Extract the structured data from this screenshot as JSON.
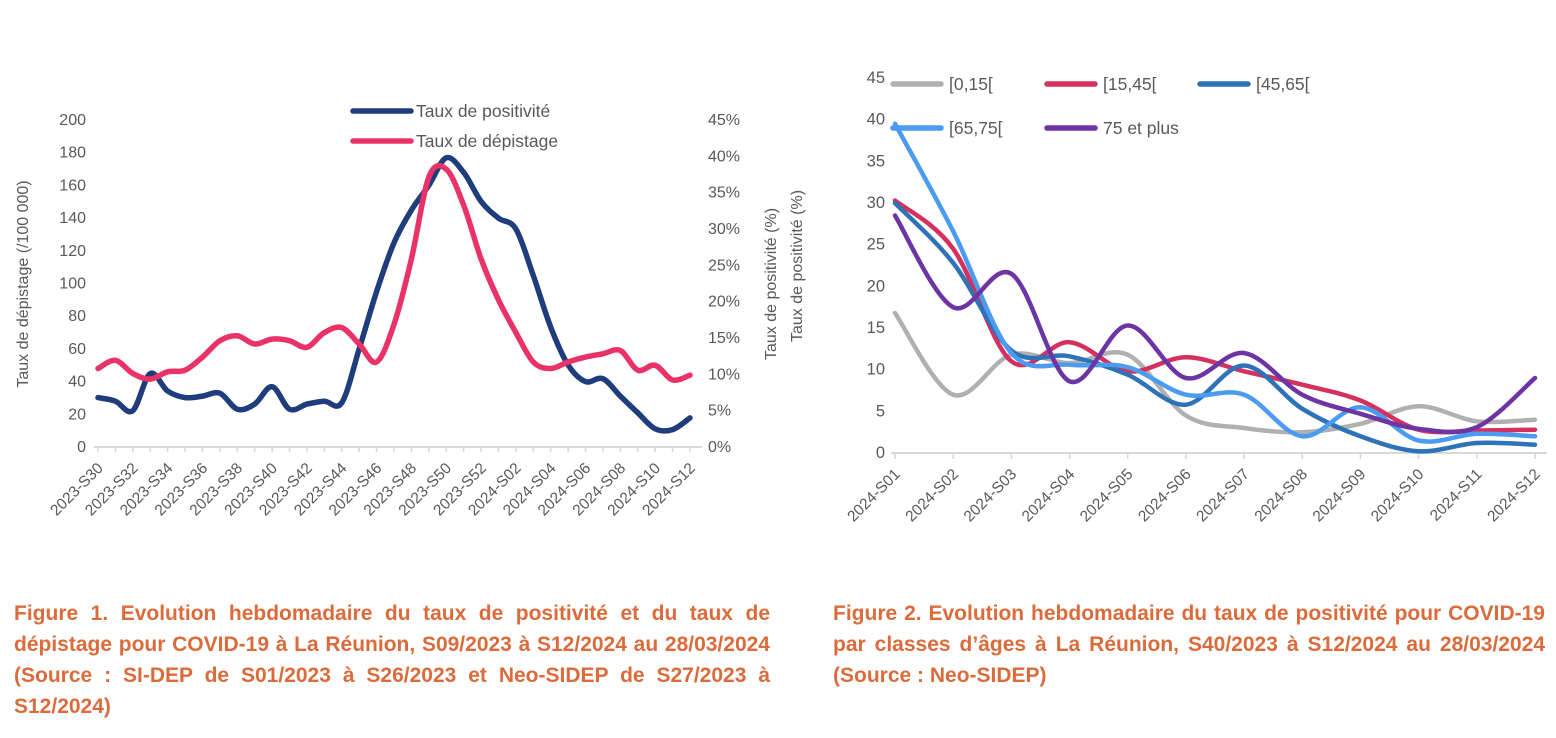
{
  "figure1": {
    "caption": "Figure 1. Evolution hebdomadaire du taux de positivité et du taux de dépistage pour COVID-19 à La Réunion, S09/2023 à S12/2024 au 28/03/2024 (Source : SI-DEP de S01/2023 à S26/2023 et Neo-SIDEP de S27/2023 à S12/2024)"
  },
  "figure2": {
    "caption": "Figure 2. Evolution hebdomadaire du taux de positivité pour COVID-19 par classes d’âges à La Réunion, S40/2023 à S12/2024 au 28/03/2024 (Source : Neo-SIDEP)"
  },
  "colors": {
    "axis_text": "#595959",
    "axis_line": "#D9D9D9",
    "caption": "#DC6B3B"
  },
  "chart_data": [
    {
      "id": "figure1",
      "type": "line",
      "x_axis": {
        "tick_labels": [
          "2023-S30",
          "2023-S32",
          "2023-S34",
          "2023-S36",
          "2023-S38",
          "2023-S40",
          "2023-S42",
          "2023-S44",
          "2023-S46",
          "2023-S48",
          "2023-S50",
          "2023-S52",
          "2024-S02",
          "2024-S04",
          "2024-S06",
          "2024-S08",
          "2024-S10",
          "2024-S12"
        ],
        "points_per_label": 2,
        "n_points": 35
      },
      "left_axis": {
        "title": "Taux de dépistage (/100 000)",
        "min": 0,
        "max": 200,
        "step": 20,
        "tick_labels": [
          "0",
          "20",
          "40",
          "60",
          "80",
          "100",
          "120",
          "140",
          "160",
          "180",
          "200"
        ]
      },
      "right_axis": {
        "title": "Taux de positivité (%)",
        "min": 0,
        "max": 45,
        "step": 5,
        "tick_labels": [
          "0%",
          "5%",
          "10%",
          "15%",
          "20%",
          "25%",
          "30%",
          "35%",
          "40%",
          "45%"
        ]
      },
      "legend_position": "top-center",
      "series": [
        {
          "name": "Taux de positivité",
          "color": "#1F3C7D",
          "axis": "right",
          "values": [
            6.8,
            6.3,
            5.0,
            10.1,
            7.7,
            6.8,
            7.0,
            7.4,
            5.2,
            5.9,
            8.3,
            5.2,
            5.9,
            6.3,
            6.1,
            13.5,
            21.4,
            28.1,
            32.6,
            36.0,
            39.8,
            37.8,
            33.8,
            31.5,
            30.0,
            23.6,
            16.5,
            11.3,
            9.0,
            9.4,
            7.0,
            4.7,
            2.5,
            2.4,
            4.0
          ]
        },
        {
          "name": "Taux de dépistage",
          "color": "#E93368",
          "axis": "left",
          "values": [
            48,
            53,
            45,
            41.5,
            46,
            47,
            55,
            65,
            68,
            63,
            66,
            65,
            61,
            70,
            73,
            63,
            52,
            75,
            115,
            165,
            170,
            148,
            115,
            90,
            70,
            52,
            48,
            52,
            55,
            57,
            59,
            47,
            50,
            41,
            44
          ]
        }
      ]
    },
    {
      "id": "figure2",
      "type": "line",
      "x_axis": {
        "tick_labels": [
          "2024-S01",
          "2024-S02",
          "2024-S03",
          "2024-S04",
          "2024-S05",
          "2024-S06",
          "2024-S07",
          "2024-S08",
          "2024-S09",
          "2024-S10",
          "2024-S11",
          "2024-S12"
        ],
        "points_per_label": 1,
        "n_points": 12
      },
      "left_axis": {
        "title": "Taux de positivité (%)",
        "min": 0,
        "max": 45,
        "step": 5,
        "tick_labels": [
          "0",
          "5",
          "10",
          "15",
          "20",
          "25",
          "30",
          "35",
          "40",
          "45"
        ]
      },
      "legend_position": "top",
      "series": [
        {
          "name": "[0,15[",
          "color": "#B0B0B0",
          "axis": "left",
          "values": [
            16.8,
            7.0,
            11.8,
            10.8,
            11.8,
            4.5,
            3.0,
            2.5,
            3.5,
            5.6,
            3.8,
            4.0
          ]
        },
        {
          "name": "[15,45[",
          "color": "#D5315E",
          "axis": "left",
          "values": [
            30.3,
            24.5,
            11.0,
            13.3,
            9.8,
            11.5,
            9.8,
            8.2,
            6.3,
            2.8,
            2.7,
            2.8
          ]
        },
        {
          "name": "[45,65[",
          "color": "#2E72B8",
          "axis": "left",
          "values": [
            30.0,
            22.8,
            12.3,
            11.6,
            9.4,
            5.8,
            10.5,
            5.3,
            2.0,
            0.2,
            1.2,
            1.0
          ]
        },
        {
          "name": "[65,75[",
          "color": "#4B9BF1",
          "axis": "left",
          "values": [
            39.5,
            26.6,
            12.0,
            10.6,
            10.3,
            7.0,
            7.0,
            2.0,
            5.5,
            1.5,
            2.3,
            2.0
          ]
        },
        {
          "name": "75 et plus",
          "color": "#6D35A3",
          "axis": "left",
          "values": [
            28.5,
            17.5,
            21.5,
            8.6,
            15.3,
            9.0,
            12.0,
            7.0,
            4.7,
            2.9,
            3.1,
            9.0
          ]
        }
      ]
    }
  ]
}
